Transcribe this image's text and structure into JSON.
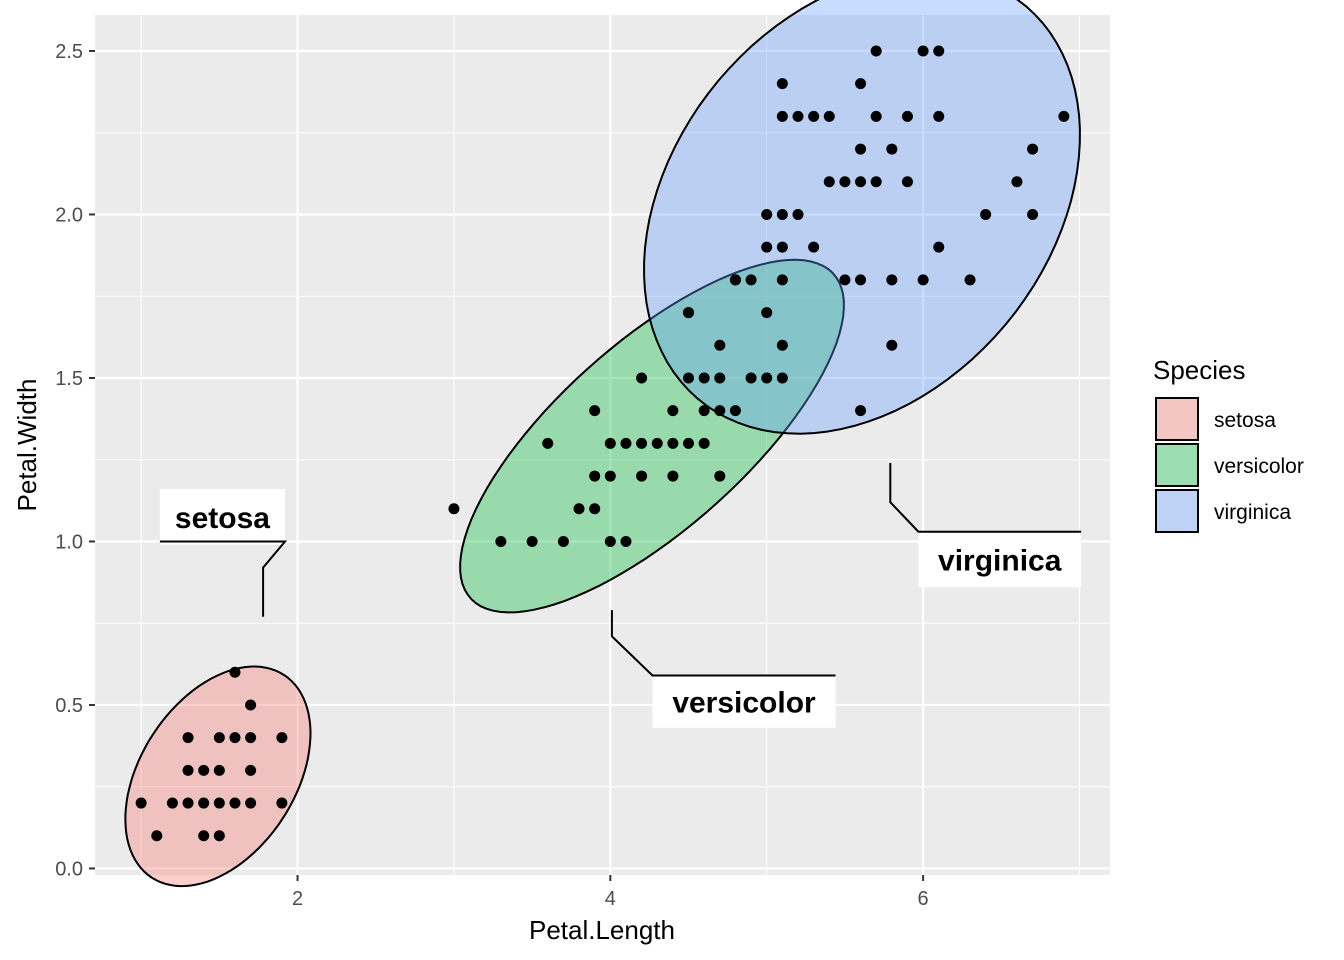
{
  "chart_data": {
    "type": "scatter",
    "title": "",
    "xlabel": "Petal.Length",
    "ylabel": "Petal.Width",
    "xlim": [
      0.705,
      7.195
    ],
    "ylim": [
      -0.02,
      2.61
    ],
    "x_ticks": [
      2,
      4,
      6
    ],
    "y_ticks": [
      0.0,
      0.5,
      1.0,
      1.5,
      2.0,
      2.5
    ],
    "x_tick_labels": [
      "2",
      "4",
      "6"
    ],
    "y_tick_labels": [
      "0.0",
      "0.5",
      "1.0",
      "1.5",
      "2.0",
      "2.5"
    ],
    "grid": true,
    "legend": {
      "title": "Species",
      "position": "right",
      "entries": [
        "setosa",
        "versicolor",
        "virginica"
      ]
    },
    "colors": {
      "setosa": "#F8766D",
      "versicolor": "#00BA38",
      "virginica": "#619CFF",
      "panel": "#EBEBEB",
      "grid": "#FFFFFF",
      "point": "#000000"
    },
    "series": [
      {
        "name": "setosa",
        "points": [
          [
            1.0,
            0.2
          ],
          [
            1.1,
            0.1
          ],
          [
            1.2,
            0.2
          ],
          [
            1.3,
            0.2
          ],
          [
            1.3,
            0.3
          ],
          [
            1.3,
            0.4
          ],
          [
            1.4,
            0.1
          ],
          [
            1.4,
            0.2
          ],
          [
            1.4,
            0.3
          ],
          [
            1.5,
            0.1
          ],
          [
            1.5,
            0.2
          ],
          [
            1.5,
            0.3
          ],
          [
            1.5,
            0.4
          ],
          [
            1.6,
            0.2
          ],
          [
            1.6,
            0.4
          ],
          [
            1.6,
            0.6
          ],
          [
            1.7,
            0.2
          ],
          [
            1.7,
            0.3
          ],
          [
            1.7,
            0.4
          ],
          [
            1.7,
            0.5
          ],
          [
            1.9,
            0.2
          ],
          [
            1.9,
            0.4
          ]
        ]
      },
      {
        "name": "versicolor",
        "points": [
          [
            3.0,
            1.1
          ],
          [
            3.3,
            1.0
          ],
          [
            3.5,
            1.0
          ],
          [
            3.6,
            1.3
          ],
          [
            3.7,
            1.0
          ],
          [
            3.8,
            1.1
          ],
          [
            3.9,
            1.1
          ],
          [
            3.9,
            1.2
          ],
          [
            3.9,
            1.4
          ],
          [
            4.0,
            1.0
          ],
          [
            4.0,
            1.2
          ],
          [
            4.0,
            1.3
          ],
          [
            4.1,
            1.0
          ],
          [
            4.1,
            1.3
          ],
          [
            4.2,
            1.2
          ],
          [
            4.2,
            1.3
          ],
          [
            4.2,
            1.5
          ],
          [
            4.3,
            1.3
          ],
          [
            4.4,
            1.2
          ],
          [
            4.4,
            1.3
          ],
          [
            4.4,
            1.4
          ],
          [
            4.5,
            1.3
          ],
          [
            4.5,
            1.5
          ],
          [
            4.5,
            1.7
          ],
          [
            4.6,
            1.3
          ],
          [
            4.6,
            1.4
          ],
          [
            4.6,
            1.5
          ],
          [
            4.7,
            1.2
          ],
          [
            4.7,
            1.4
          ],
          [
            4.7,
            1.5
          ],
          [
            4.7,
            1.6
          ],
          [
            4.8,
            1.4
          ],
          [
            4.8,
            1.8
          ],
          [
            4.9,
            1.5
          ],
          [
            5.0,
            1.7
          ],
          [
            5.1,
            1.6
          ]
        ]
      },
      {
        "name": "virginica",
        "points": [
          [
            4.5,
            1.7
          ],
          [
            4.8,
            1.8
          ],
          [
            4.9,
            1.8
          ],
          [
            5.0,
            1.5
          ],
          [
            5.0,
            1.9
          ],
          [
            5.0,
            2.0
          ],
          [
            5.1,
            1.5
          ],
          [
            5.1,
            1.8
          ],
          [
            5.1,
            1.9
          ],
          [
            5.1,
            2.0
          ],
          [
            5.1,
            2.3
          ],
          [
            5.1,
            2.4
          ],
          [
            5.2,
            2.0
          ],
          [
            5.2,
            2.3
          ],
          [
            5.3,
            1.9
          ],
          [
            5.3,
            2.3
          ],
          [
            5.4,
            2.1
          ],
          [
            5.4,
            2.3
          ],
          [
            5.5,
            1.8
          ],
          [
            5.5,
            2.1
          ],
          [
            5.6,
            1.4
          ],
          [
            5.6,
            1.8
          ],
          [
            5.6,
            2.1
          ],
          [
            5.6,
            2.2
          ],
          [
            5.6,
            2.4
          ],
          [
            5.7,
            2.1
          ],
          [
            5.7,
            2.3
          ],
          [
            5.7,
            2.5
          ],
          [
            5.8,
            1.6
          ],
          [
            5.8,
            1.8
          ],
          [
            5.8,
            2.2
          ],
          [
            5.9,
            2.1
          ],
          [
            5.9,
            2.3
          ],
          [
            6.0,
            1.8
          ],
          [
            6.0,
            2.5
          ],
          [
            6.1,
            1.9
          ],
          [
            6.1,
            2.3
          ],
          [
            6.1,
            2.5
          ],
          [
            6.3,
            1.8
          ],
          [
            6.4,
            2.0
          ],
          [
            6.6,
            2.1
          ],
          [
            6.7,
            2.0
          ],
          [
            6.7,
            2.2
          ],
          [
            6.9,
            2.3
          ]
        ]
      }
    ],
    "annotations": [
      {
        "label": "setosa",
        "box": [
          1.12,
          1.16,
          1.92,
          0.99
        ],
        "connector": [
          [
            1.12,
            1.0
          ],
          [
            1.92,
            1.0
          ],
          [
            1.78,
            0.92
          ],
          [
            1.78,
            0.77
          ]
        ]
      },
      {
        "label": "versicolor",
        "box": [
          4.27,
          0.59,
          5.44,
          0.43
        ],
        "connector": [
          [
            4.01,
            0.79
          ],
          [
            4.01,
            0.71
          ],
          [
            4.27,
            0.59
          ],
          [
            5.44,
            0.59
          ]
        ]
      },
      {
        "label": "virginica",
        "box": [
          5.97,
          1.03,
          7.01,
          0.86
        ],
        "connector": [
          [
            5.79,
            1.24
          ],
          [
            5.79,
            1.12
          ],
          [
            5.97,
            1.03
          ],
          [
            7.01,
            1.03
          ]
        ]
      }
    ]
  }
}
